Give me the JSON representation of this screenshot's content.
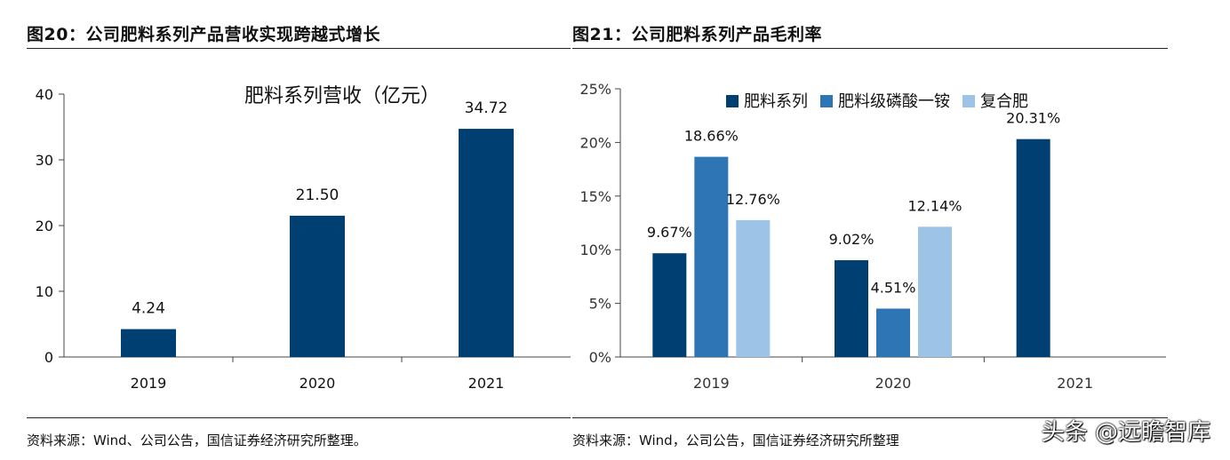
{
  "left": {
    "figure_title": "图20：公司肥料系列产品营收实现跨越式增长",
    "source": "资料来源：Wind、公司公告，国信证券经济研究所整理。"
  },
  "right": {
    "figure_title": "图21：公司肥料系列产品毛利率",
    "source": "资料来源：Wind，公司公告，国信证券经济研究所整理"
  },
  "watermark": "头条 @远瞻智库",
  "colors": {
    "dark": "#003f72",
    "mid": "#2e75b6",
    "light": "#9dc3e6",
    "axis": "#444444"
  },
  "chart_data": [
    {
      "type": "bar",
      "title": "肥料系列营收（亿元）",
      "categories": [
        "2019",
        "2020",
        "2021"
      ],
      "values": [
        4.24,
        21.5,
        34.72
      ],
      "value_labels": [
        "4.24",
        "21.50",
        "34.72"
      ],
      "ylim": [
        0,
        40
      ],
      "yticks": [
        "0",
        "10",
        "20",
        "30",
        "40"
      ],
      "grid": false,
      "legend": "none"
    },
    {
      "type": "bar",
      "categories": [
        "2019",
        "2020",
        "2021"
      ],
      "series": [
        {
          "name": "肥料系列",
          "values": [
            9.67,
            9.02,
            20.31
          ],
          "labels": [
            "9.67%",
            "9.02%",
            "20.31%"
          ]
        },
        {
          "name": "肥料级磷酸一铵",
          "values": [
            18.66,
            4.51,
            null
          ],
          "labels": [
            "18.66%",
            "4.51%",
            ""
          ]
        },
        {
          "name": "复合肥",
          "values": [
            12.76,
            12.14,
            null
          ],
          "labels": [
            "12.76%",
            "12.14%",
            ""
          ]
        }
      ],
      "ylim": [
        0,
        25
      ],
      "yticks": [
        "0%",
        "5%",
        "10%",
        "15%",
        "20%",
        "25%"
      ],
      "grid": false,
      "legend": "top"
    }
  ]
}
